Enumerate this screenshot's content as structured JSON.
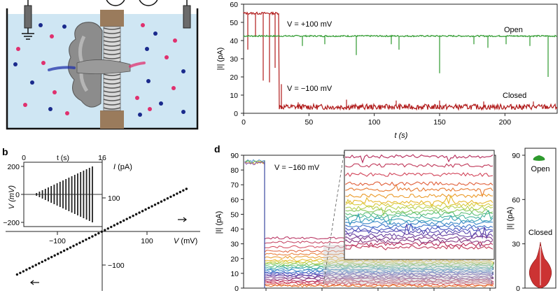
{
  "panel_labels": {
    "b": "b",
    "d": "d"
  },
  "colors": {
    "open": "#2e9a2e",
    "closed": "#b01a1a",
    "bath": "#cfe6f3",
    "pore_rod": "#9a7b5c",
    "protein": "#8c8c8c",
    "ion_pos": "#e0306e",
    "ion_neg": "#1a2a8c",
    "violin": "#cc3333"
  },
  "chart_data": [
    {
      "id": "top-right",
      "type": "line",
      "xlabel": "t (s)",
      "ylabel": "|I| (pA)",
      "xlim": [
        0,
        240
      ],
      "ylim": [
        0,
        60
      ],
      "xticks": [
        0,
        50,
        100,
        150,
        200
      ],
      "yticks": [
        0,
        10,
        20,
        30,
        40,
        50,
        60
      ],
      "series": [
        {
          "name": "V = +100 mV",
          "state": "Open",
          "level": 42.5,
          "x_range": [
            0,
            240
          ],
          "spikes": [
            [
              45,
              37
            ],
            [
              62,
              38
            ],
            [
              86,
              32
            ],
            [
              113,
              38
            ],
            [
              119,
              35
            ],
            [
              150,
              22
            ],
            [
              176,
              38
            ],
            [
              187,
              36
            ],
            [
              201,
              38
            ],
            [
              219,
              37
            ],
            [
              233,
              20
            ]
          ]
        },
        {
          "name": "V = −100 mV",
          "state": "Closed",
          "initial_level": 55,
          "x_switch": 27,
          "level": 3.5,
          "x_range": [
            0,
            240
          ],
          "spikes": [
            [
              3,
              35
            ],
            [
              9,
              42
            ],
            [
              15,
              18
            ],
            [
              20,
              17
            ],
            [
              24,
              25
            ],
            [
              29,
              16
            ],
            [
              42,
              6
            ],
            [
              79,
              7.5
            ],
            [
              117,
              7
            ],
            [
              150,
              7
            ],
            [
              184,
              6.5
            ],
            [
              222,
              6.5
            ]
          ]
        }
      ],
      "annotations": [
        "V = +100 mV",
        "Open",
        "V = −100 mV",
        "Closed"
      ]
    },
    {
      "id": "b",
      "type": "scatter",
      "xlabel": "V (mV)",
      "ylabel": "I (pA)",
      "xticks": [
        -100,
        100
      ],
      "yticks": [
        100,
        -100
      ],
      "points_range": [
        -200,
        200
      ],
      "slope": 0.75,
      "inset": {
        "xlabel": "t (s)",
        "ylabel": "V (mV)",
        "xticks": [
          0,
          16
        ],
        "yticks": [
          200,
          0,
          -200
        ],
        "steps": 20,
        "v_max": 200
      }
    },
    {
      "id": "d",
      "type": "line",
      "xlabel": "",
      "ylabel": "|I| (pA)",
      "ylim": [
        0,
        90
      ],
      "yticks": [
        0,
        10,
        20,
        30,
        40,
        50,
        60,
        70,
        80,
        90
      ],
      "annotation": "V = −160 mV",
      "open_level": 86,
      "closed_levels": [
        34,
        31,
        28,
        25,
        23,
        21,
        19,
        18,
        17,
        16,
        15,
        14,
        13,
        12,
        11,
        10,
        9,
        8,
        7,
        6,
        5,
        4,
        3,
        2,
        1.5
      ]
    },
    {
      "id": "violin",
      "type": "violin",
      "ylabel": "|I| (pA)",
      "yticks": [
        0,
        30,
        60,
        90
      ],
      "labels": [
        "Open",
        "Closed"
      ]
    }
  ]
}
